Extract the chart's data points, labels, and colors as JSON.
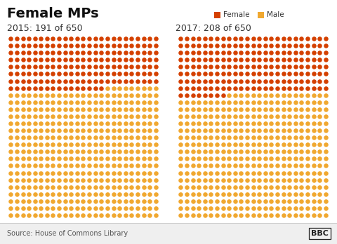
{
  "title": "Female MPs",
  "legend_female": "Female",
  "legend_male": "Male",
  "female_color": "#d44000",
  "male_color": "#f0a830",
  "label_2015": "2015: 191 of 650",
  "label_2017": "2017: 208 of 650",
  "female_2015": 191,
  "female_2017": 208,
  "total": 650,
  "cols": 25,
  "rows": 26,
  "source": "Source: House of Commons Library",
  "bbc_text": "BBC",
  "background": "#ffffff",
  "footer_bg": "#eeeeee",
  "title_fontsize": 15,
  "label_fontsize": 9.5
}
